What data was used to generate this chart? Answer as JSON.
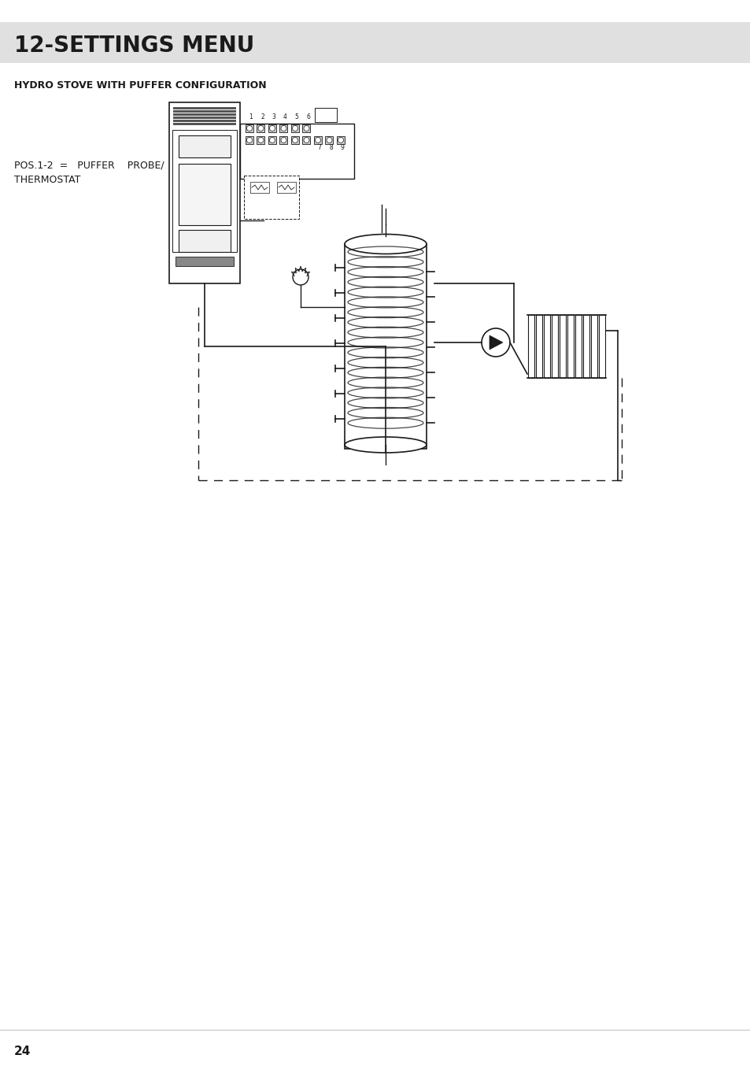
{
  "title": "12-SETTINGS MENU",
  "title_bg_color": "#e0e0e0",
  "subtitle": "HYDRO STOVE WITH PUFFER CONFIGURATION",
  "label_line1": "POS.1-2  =   PUFFER    PROBE/",
  "label_line2": "THERMOSTAT",
  "page_number": "24",
  "bg_color": "#ffffff",
  "line_color": "#1a1a1a",
  "dashed_color": "#1a1a1a"
}
